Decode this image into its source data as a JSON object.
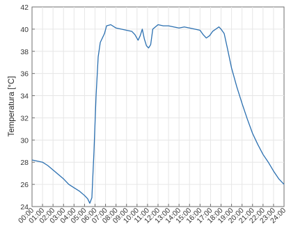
{
  "chart_data": {
    "type": "line",
    "title": "",
    "xlabel": "",
    "ylabel": "Temperatura [°C]",
    "grid": true,
    "ylim": [
      24,
      42
    ],
    "y_ticks": [
      24,
      26,
      28,
      30,
      32,
      34,
      36,
      38,
      40,
      42
    ],
    "x_ticks": [
      "00:00",
      "01:00",
      "02:00",
      "03:00",
      "04:00",
      "05:00",
      "06:00",
      "07:00",
      "08:00",
      "09:00",
      "10:00",
      "11:00",
      "12:00",
      "13:00",
      "14:00",
      "15:00",
      "16:00",
      "17:00",
      "18:00",
      "19:00",
      "20:00",
      "21:00",
      "22:00",
      "23:00",
      "24:00"
    ],
    "xlim_hours": [
      0,
      24
    ],
    "series": [
      {
        "color": "#2a6fb0",
        "x_hours": [
          0,
          0.5,
          1,
          1.5,
          2,
          2.5,
          3,
          3.5,
          4,
          4.5,
          5,
          5.3,
          5.5,
          5.7,
          5.9,
          6.1,
          6.3,
          6.5,
          6.7,
          6.9,
          7.1,
          7.5,
          8,
          8.5,
          9,
          9.5,
          9.8,
          10.1,
          10.3,
          10.5,
          10.7,
          10.9,
          11.1,
          11.3,
          11.5,
          12,
          12.5,
          13,
          13.5,
          14,
          14.5,
          15,
          15.5,
          16,
          16.3,
          16.6,
          16.9,
          17.2,
          17.5,
          17.8,
          18,
          18.3,
          18.6,
          19,
          19.5,
          20,
          20.5,
          21,
          21.5,
          22,
          22.5,
          23,
          23.5,
          24
        ],
        "values": [
          28.2,
          28.1,
          28.0,
          27.7,
          27.3,
          26.9,
          26.5,
          26.0,
          25.7,
          25.4,
          25.0,
          24.7,
          24.3,
          24.8,
          29.0,
          34.0,
          37.5,
          38.8,
          39.2,
          39.6,
          40.3,
          40.4,
          40.1,
          40.0,
          39.9,
          39.8,
          39.5,
          39.0,
          39.4,
          40.0,
          39.1,
          38.5,
          38.3,
          38.6,
          40.0,
          40.4,
          40.3,
          40.3,
          40.2,
          40.1,
          40.2,
          40.1,
          40.0,
          39.9,
          39.5,
          39.2,
          39.4,
          39.8,
          40.0,
          40.2,
          40.0,
          39.6,
          38.3,
          36.5,
          34.8,
          33.3,
          31.9,
          30.6,
          29.6,
          28.7,
          28.0,
          27.2,
          26.5,
          26.0
        ]
      }
    ]
  }
}
